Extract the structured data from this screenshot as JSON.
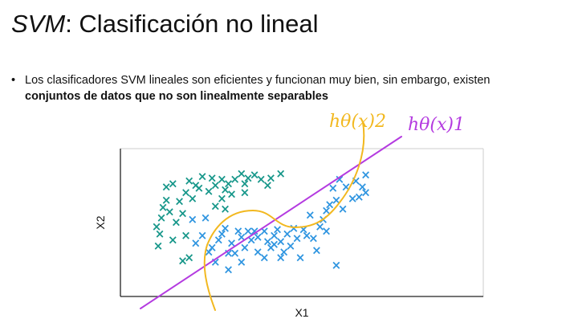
{
  "slide": {
    "title_prefix": "SVM",
    "title_rest": ": Clasificación no lineal",
    "bullet_text": "Los clasificadores SVM lineales son eficientes y funcionan muy bien, sin embargo, existen",
    "bullet_bold": "conjuntos de datos que no son linealmente separables"
  },
  "chart_data": {
    "type": "scatter",
    "xlabel": "X1",
    "ylabel": "X2",
    "marker": "x",
    "colors": {
      "class_a": "#17978a",
      "class_b": "#2f95e0",
      "line_1": "#b43be0",
      "curve_2": "#f2b81f"
    },
    "annotations": {
      "line_1_label": "hθ(x)1",
      "curve_2_label": "hθ(x)2"
    },
    "series": [
      {
        "key": "class_a",
        "points": [
          [
            0.38,
            0.83
          ],
          [
            0.35,
            0.8
          ],
          [
            0.34,
            0.75
          ],
          [
            0.32,
            0.79
          ],
          [
            0.3,
            0.82
          ],
          [
            0.28,
            0.8
          ],
          [
            0.27,
            0.76
          ],
          [
            0.26,
            0.83
          ],
          [
            0.24,
            0.79
          ],
          [
            0.22,
            0.76
          ],
          [
            0.21,
            0.72
          ],
          [
            0.2,
            0.79
          ],
          [
            0.18,
            0.75
          ],
          [
            0.17,
            0.8
          ],
          [
            0.16,
            0.71
          ],
          [
            0.14,
            0.81
          ],
          [
            0.13,
            0.73
          ],
          [
            0.12,
            0.75
          ],
          [
            0.11,
            0.66
          ],
          [
            0.1,
            0.78
          ],
          [
            0.09,
            0.7
          ],
          [
            0.08,
            0.56
          ],
          [
            0.07,
            0.64
          ],
          [
            0.06,
            0.5
          ],
          [
            0.05,
            0.76
          ],
          [
            0.04,
            0.57
          ],
          [
            0.03,
            0.74
          ],
          [
            0.03,
            0.65
          ],
          [
            0.02,
            0.6
          ],
          [
            0.015,
            0.53
          ],
          [
            0.01,
            0.42
          ],
          [
            0.005,
            0.34
          ],
          [
            0.0,
            0.47
          ],
          [
            0.08,
            0.24
          ],
          [
            0.05,
            0.38
          ],
          [
            0.09,
            0.41
          ],
          [
            0.1,
            0.26
          ],
          [
            0.18,
            0.61
          ],
          [
            0.2,
            0.66
          ],
          [
            0.21,
            0.59
          ],
          [
            0.23,
            0.69
          ],
          [
            0.27,
            0.7
          ]
        ]
      },
      {
        "key": "class_b",
        "points": [
          [
            0.64,
            0.82
          ],
          [
            0.61,
            0.78
          ],
          [
            0.63,
            0.74
          ],
          [
            0.64,
            0.7
          ],
          [
            0.6,
            0.66
          ],
          [
            0.62,
            0.67
          ],
          [
            0.56,
            0.79
          ],
          [
            0.58,
            0.74
          ],
          [
            0.54,
            0.73
          ],
          [
            0.53,
            0.62
          ],
          [
            0.55,
            0.65
          ],
          [
            0.57,
            0.59
          ],
          [
            0.52,
            0.58
          ],
          [
            0.51,
            0.52
          ],
          [
            0.5,
            0.47
          ],
          [
            0.52,
            0.44
          ],
          [
            0.47,
            0.55
          ],
          [
            0.46,
            0.41
          ],
          [
            0.45,
            0.45
          ],
          [
            0.48,
            0.39
          ],
          [
            0.43,
            0.39
          ],
          [
            0.42,
            0.46
          ],
          [
            0.4,
            0.42
          ],
          [
            0.41,
            0.34
          ],
          [
            0.39,
            0.3
          ],
          [
            0.37,
            0.45
          ],
          [
            0.38,
            0.37
          ],
          [
            0.36,
            0.41
          ],
          [
            0.33,
            0.44
          ],
          [
            0.34,
            0.37
          ],
          [
            0.35,
            0.33
          ],
          [
            0.31,
            0.4
          ],
          [
            0.29,
            0.38
          ],
          [
            0.28,
            0.44
          ],
          [
            0.3,
            0.44
          ],
          [
            0.26,
            0.4
          ],
          [
            0.27,
            0.33
          ],
          [
            0.24,
            0.29
          ],
          [
            0.25,
            0.44
          ],
          [
            0.23,
            0.36
          ],
          [
            0.22,
            0.29
          ],
          [
            0.2,
            0.42
          ],
          [
            0.21,
            0.46
          ],
          [
            0.19,
            0.38
          ],
          [
            0.17,
            0.33
          ],
          [
            0.15,
            0.53
          ],
          [
            0.14,
            0.41
          ],
          [
            0.12,
            0.36
          ],
          [
            0.11,
            0.52
          ],
          [
            0.18,
            0.23
          ],
          [
            0.16,
            0.3
          ],
          [
            0.22,
            0.18
          ],
          [
            0.26,
            0.23
          ],
          [
            0.31,
            0.3
          ],
          [
            0.33,
            0.26
          ],
          [
            0.36,
            0.35
          ],
          [
            0.44,
            0.26
          ],
          [
            0.49,
            0.31
          ],
          [
            0.38,
            0.26
          ],
          [
            0.55,
            0.21
          ]
        ]
      }
    ]
  }
}
